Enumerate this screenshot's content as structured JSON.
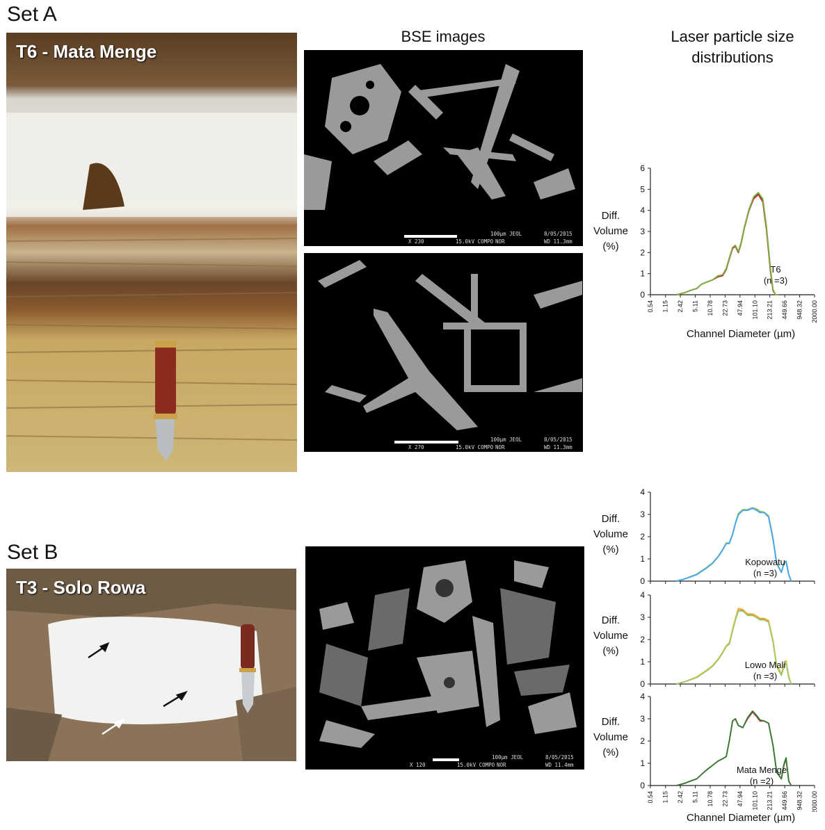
{
  "set_a": {
    "label": "Set A",
    "photo_title": "T6 - Mata Menge",
    "bse_column_title": "BSE images",
    "lpsd_column_title": [
      "Laser particle size",
      "distributions"
    ],
    "bse_images": [
      {
        "mag": "X 230",
        "kv": "15.0kV COMPO",
        "mode": "NOR",
        "scale": "100μm JEOL",
        "date": "8/05/2015",
        "wd": "WD 11.3mm"
      },
      {
        "mag": "X 270",
        "kv": "15.0kV COMPO",
        "mode": "NOR",
        "scale": "100μm JEOL",
        "date": "8/05/2015",
        "wd": "WD 11.3mm"
      }
    ]
  },
  "set_b": {
    "label": "Set B",
    "photo_title": "T3 - Solo Rowa",
    "bse_images": [
      {
        "mag": "X 120",
        "kv": "15.0kV COMPO",
        "mode": "NOR",
        "scale": "100μm JEOL",
        "date": "8/05/2015",
        "wd": "WD 11.4mm"
      }
    ]
  },
  "axis_text": {
    "ylabel": [
      "Diff.",
      "Volume",
      "(%)"
    ],
    "xlabel": "Channel Diameter (µm)"
  },
  "chart_data": [
    {
      "type": "line",
      "sample": "T6",
      "n_text": "(n =3)",
      "x_ticks": [
        "0.54",
        "1.15",
        "2.42",
        "5.11",
        "10.78",
        "22.73",
        "47.94",
        "101.10",
        "213.21",
        "449.66",
        "948.32",
        "2000.00"
      ],
      "ylim": [
        0,
        6
      ],
      "y_ticks": [
        0,
        1,
        2,
        3,
        4,
        5,
        6
      ],
      "x_axis_scale": "log",
      "x": [
        2.0,
        3.0,
        4.0,
        5.5,
        7.0,
        9.0,
        12,
        16,
        20,
        24,
        28,
        33,
        38,
        44,
        50,
        60,
        75,
        95,
        120,
        150,
        180,
        220,
        250,
        285,
        300,
        330
      ],
      "series": [
        {
          "color": "#2e7d32",
          "values": [
            0,
            0.1,
            0.2,
            0.3,
            0.5,
            0.6,
            0.7,
            0.9,
            0.9,
            1.2,
            1.7,
            2.2,
            2.3,
            2.0,
            2.4,
            3.2,
            4.0,
            4.6,
            4.8,
            4.5,
            3.2,
            1.2,
            0.2,
            0,
            0,
            0
          ]
        },
        {
          "color": "#c62828",
          "values": [
            0,
            0.1,
            0.2,
            0.3,
            0.5,
            0.6,
            0.7,
            0.85,
            0.9,
            1.2,
            1.7,
            2.2,
            2.3,
            2.0,
            2.4,
            3.2,
            4.0,
            4.55,
            4.75,
            4.4,
            3.1,
            1.1,
            0.2,
            0,
            0,
            0
          ]
        },
        {
          "color": "#7cb342",
          "values": [
            0,
            0.1,
            0.2,
            0.3,
            0.5,
            0.6,
            0.7,
            0.9,
            0.95,
            1.25,
            1.75,
            2.25,
            2.35,
            2.05,
            2.45,
            3.25,
            4.05,
            4.65,
            4.85,
            4.55,
            3.25,
            1.25,
            0.25,
            0,
            0,
            0
          ]
        }
      ]
    },
    {
      "type": "line",
      "sample": "Kopowatu",
      "n_text": "(n =3)",
      "ylim": [
        0,
        4
      ],
      "y_ticks": [
        0,
        1,
        2,
        3,
        4
      ],
      "x_axis_scale": "log",
      "x": [
        2.0,
        3.0,
        4.0,
        5.5,
        7.0,
        9.0,
        12,
        16,
        20,
        24,
        28,
        33,
        38,
        44,
        55,
        70,
        90,
        110,
        130,
        160,
        200,
        250,
        300,
        380,
        430,
        480,
        550,
        620
      ],
      "series": [
        {
          "color": "#7e57c2",
          "values": [
            0,
            0.1,
            0.2,
            0.3,
            0.45,
            0.6,
            0.8,
            1.1,
            1.4,
            1.7,
            1.7,
            2.1,
            2.6,
            3.0,
            3.2,
            3.2,
            3.3,
            3.2,
            3.1,
            3.1,
            2.9,
            1.9,
            0.8,
            0.4,
            0.8,
            0.9,
            0.3,
            0
          ]
        },
        {
          "color": "#9ccc65",
          "values": [
            0,
            0.1,
            0.2,
            0.32,
            0.47,
            0.62,
            0.82,
            1.12,
            1.42,
            1.72,
            1.72,
            2.12,
            2.62,
            3.05,
            3.22,
            3.22,
            3.3,
            3.25,
            3.15,
            3.1,
            2.95,
            1.95,
            0.82,
            0.42,
            0.82,
            0.92,
            0.32,
            0
          ]
        },
        {
          "color": "#42a5f5",
          "values": [
            0,
            0.1,
            0.19,
            0.29,
            0.44,
            0.59,
            0.79,
            1.09,
            1.39,
            1.69,
            1.69,
            2.09,
            2.59,
            2.98,
            3.18,
            3.18,
            3.28,
            3.18,
            3.08,
            3.08,
            2.88,
            1.88,
            0.78,
            0.39,
            0.78,
            0.88,
            0.29,
            0
          ]
        }
      ]
    },
    {
      "type": "line",
      "sample": "Lowo Mali",
      "n_text": "(n =3)",
      "ylim": [
        0,
        4
      ],
      "y_ticks": [
        0,
        1,
        2,
        3,
        4
      ],
      "x_axis_scale": "log",
      "x": [
        2.0,
        3.0,
        4.0,
        5.5,
        7.0,
        9.0,
        12,
        16,
        20,
        24,
        28,
        33,
        38,
        44,
        55,
        70,
        90,
        110,
        130,
        160,
        200,
        250,
        300,
        380,
        430,
        480,
        550,
        620
      ],
      "series": [
        {
          "color": "#7e57c2",
          "values": [
            0,
            0.1,
            0.2,
            0.3,
            0.45,
            0.6,
            0.8,
            1.1,
            1.4,
            1.7,
            1.8,
            2.4,
            2.9,
            3.3,
            3.3,
            3.1,
            3.1,
            3.0,
            2.9,
            2.9,
            2.8,
            1.9,
            0.8,
            0.4,
            0.8,
            1.0,
            0.3,
            0
          ]
        },
        {
          "color": "#f9a825",
          "values": [
            0,
            0.1,
            0.2,
            0.32,
            0.47,
            0.62,
            0.82,
            1.12,
            1.42,
            1.72,
            1.85,
            2.45,
            2.95,
            3.4,
            3.35,
            3.15,
            3.15,
            3.05,
            2.95,
            2.95,
            2.85,
            1.95,
            0.85,
            0.45,
            0.85,
            1.05,
            0.35,
            0
          ]
        },
        {
          "color": "#9ccc65",
          "values": [
            0,
            0.1,
            0.19,
            0.29,
            0.44,
            0.59,
            0.79,
            1.09,
            1.39,
            1.69,
            1.78,
            2.38,
            2.88,
            3.28,
            3.28,
            3.08,
            3.08,
            2.98,
            2.88,
            2.88,
            2.78,
            1.88,
            0.78,
            0.39,
            0.78,
            0.98,
            0.29,
            0
          ]
        }
      ]
    },
    {
      "type": "line",
      "sample": "Mata Menge",
      "n_text": "(n =2)",
      "x_ticks": [
        "0.54",
        "1.15",
        "2.42",
        "5.11",
        "10.78",
        "22.73",
        "47.94",
        "101.10",
        "213.21",
        "449.66",
        "948.32",
        "2000.00"
      ],
      "ylim": [
        0,
        4
      ],
      "y_ticks": [
        0,
        1,
        2,
        3,
        4
      ],
      "x_axis_scale": "log",
      "x": [
        2.0,
        3.0,
        4.0,
        5.5,
        7.0,
        9.0,
        12,
        16,
        20,
        24,
        28,
        33,
        38,
        44,
        55,
        70,
        90,
        110,
        130,
        160,
        200,
        250,
        300,
        380,
        430,
        480,
        550,
        620
      ],
      "series": [
        {
          "color": "#d32f2f",
          "values": [
            0,
            0.1,
            0.2,
            0.3,
            0.5,
            0.7,
            0.9,
            1.1,
            1.2,
            1.3,
            2.0,
            2.9,
            3.0,
            2.7,
            2.6,
            3.0,
            3.3,
            3.1,
            2.9,
            2.9,
            2.8,
            1.8,
            0.6,
            0.3,
            0.9,
            1.2,
            0.2,
            0
          ]
        },
        {
          "color": "#2e7d32",
          "values": [
            0,
            0.1,
            0.2,
            0.3,
            0.5,
            0.7,
            0.9,
            1.1,
            1.2,
            1.3,
            2.0,
            2.9,
            3.0,
            2.7,
            2.6,
            3.05,
            3.35,
            3.15,
            2.95,
            2.9,
            2.8,
            1.8,
            0.6,
            0.3,
            0.95,
            1.25,
            0.2,
            0
          ]
        }
      ]
    }
  ]
}
